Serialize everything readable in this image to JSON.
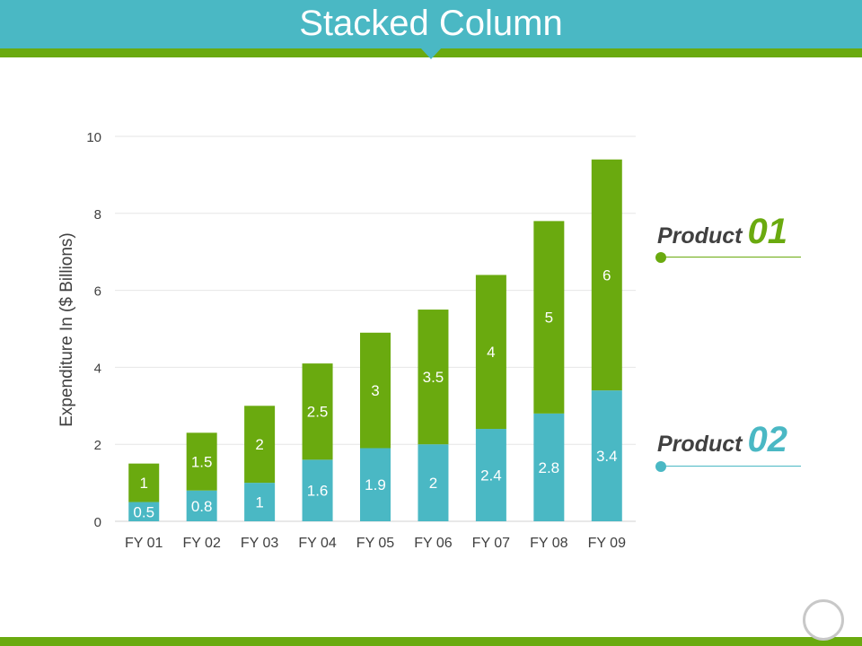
{
  "slide": {
    "title": "Stacked Column"
  },
  "legend": {
    "product1": {
      "text": "Product",
      "number": "01",
      "color": "#6aaa0f"
    },
    "product2": {
      "text": "Product",
      "number": "02",
      "color": "#4ab8c4"
    }
  },
  "chart_data": {
    "type": "bar",
    "stacked": true,
    "title": "",
    "xlabel": "",
    "ylabel": "Expenditure In ($ Billions)",
    "ylim": [
      0,
      10
    ],
    "yticks": [
      0,
      2,
      4,
      6,
      8,
      10
    ],
    "grid": true,
    "categories": [
      "FY 01",
      "FY 02",
      "FY 03",
      "FY 04",
      "FY 05",
      "FY 06",
      "FY 07",
      "FY 08",
      "FY 09"
    ],
    "series": [
      {
        "name": "Product 02",
        "color": "#4ab8c4",
        "values": [
          0.5,
          0.8,
          1,
          1.6,
          1.9,
          2,
          2.4,
          2.8,
          3.4
        ]
      },
      {
        "name": "Product 01",
        "color": "#6aaa0f",
        "values": [
          1,
          1.5,
          2,
          2.5,
          3,
          3.5,
          4,
          5,
          6
        ]
      }
    ],
    "legend": "right"
  }
}
